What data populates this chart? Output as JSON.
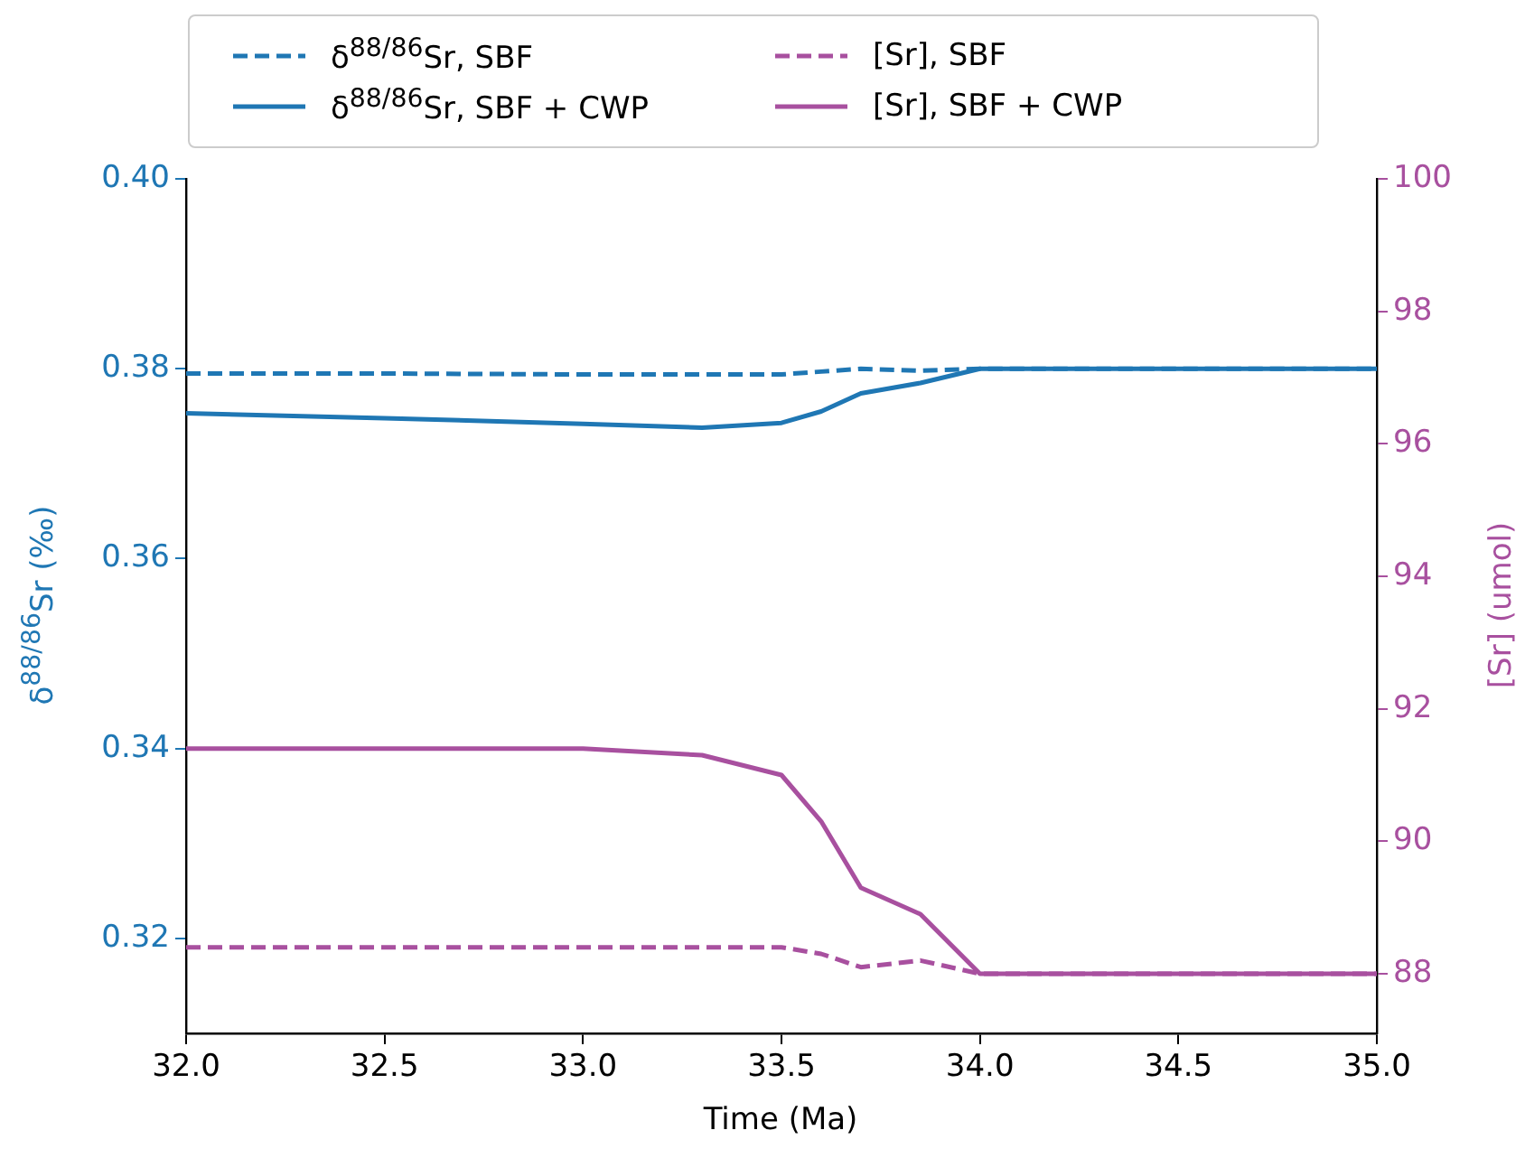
{
  "chart_data": {
    "type": "line",
    "xlabel": "Time (Ma)",
    "ylabel": "δ$^{88/86}$Sr (‰)",
    "y2label": "[Sr] (umol)",
    "x": [
      32,
      32.5,
      33,
      33.3,
      33.5,
      33.6,
      33.7,
      33.85,
      34,
      34.5,
      35
    ],
    "series": [
      {
        "name": "δ$^{88/86}$Sr, SBF",
        "color": "#1f77b4",
        "line_style": "dashed",
        "values": [
          0.3795,
          0.3795,
          0.3794,
          0.3794,
          0.3794,
          0.3797,
          0.38,
          0.3798,
          0.38,
          0.38,
          0.38
        ]
      },
      {
        "name": "δ$^{88/86}$Sr, SBF + CWP",
        "color": "#1f77b4",
        "line_style": "solid",
        "values": [
          0.3753,
          0.3748,
          0.3742,
          0.3738,
          0.3743,
          0.3755,
          0.3774,
          0.3785,
          0.38,
          0.38,
          0.38
        ]
      },
      {
        "name": "[Sr], SBF",
        "color": "#a8509f",
        "line_style": "dashed",
        "axis": "y2",
        "values": [
          88.4,
          88.4,
          88.4,
          88.4,
          88.4,
          88.3,
          88.1,
          88.2,
          88.0,
          88.0,
          88.0
        ]
      },
      {
        "name": "[Sr], SBF + CWP",
        "color": "#a8509f",
        "line_style": "solid",
        "axis": "y2",
        "values": [
          91.4,
          91.4,
          91.4,
          91.3,
          91.0,
          90.3,
          89.3,
          88.9,
          88.0,
          88.0,
          88.0
        ]
      }
    ],
    "xlim": [
      32,
      35
    ],
    "xticks": [
      {
        "value": 32,
        "label": "32.0"
      },
      {
        "value": 32.5,
        "label": "32.5"
      },
      {
        "value": 33,
        "label": "33.0"
      },
      {
        "value": 33.5,
        "label": "33.5"
      },
      {
        "value": 34,
        "label": "34.0"
      },
      {
        "value": 34.5,
        "label": "34.5"
      },
      {
        "value": 35,
        "label": "35.0"
      }
    ],
    "ylim": [
      0.31,
      0.4
    ],
    "yticks": [
      0.32,
      0.34,
      0.36,
      0.38,
      {
        "value": 0.4,
        "label": "0.40"
      }
    ],
    "y2lim": [
      87.1,
      100
    ],
    "y2ticks": [
      88,
      90,
      92,
      94,
      96,
      98,
      100
    ],
    "legend": "top",
    "marker": "none",
    "grid": false
  }
}
